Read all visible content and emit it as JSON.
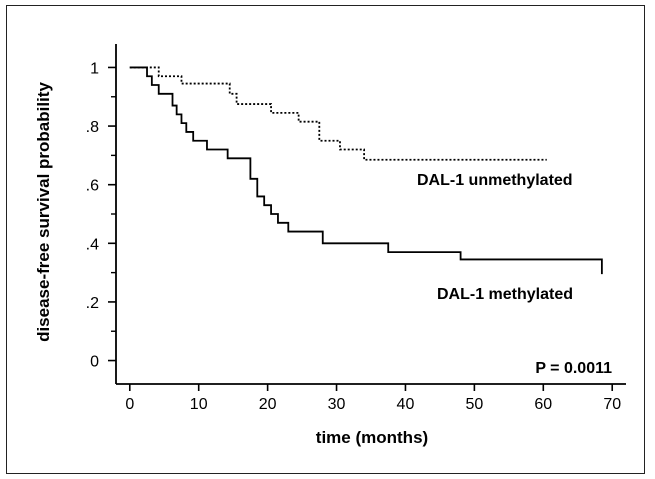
{
  "chart_data": {
    "type": "line",
    "title": "",
    "xlabel": "time (months)",
    "ylabel": "disease-free survival probability",
    "xlim": [
      -2,
      72
    ],
    "ylim": [
      -0.08,
      1.08
    ],
    "x_ticks": [
      0,
      10,
      20,
      30,
      40,
      50,
      60,
      70
    ],
    "x_tick_labels": [
      "0",
      "10",
      "20",
      "30",
      "40",
      "50",
      "60",
      "70"
    ],
    "y_ticks": [
      0,
      0.2,
      0.4,
      0.6,
      0.8,
      1.0
    ],
    "y_tick_labels": [
      "0",
      ".2",
      ".4",
      ".6",
      ".8",
      "1"
    ],
    "grid": false,
    "series": [
      {
        "name": "DAL-1 unmethylated",
        "line_style": "dotted",
        "color": "#000000",
        "step": true,
        "x": [
          0,
          3.5,
          4.2,
          7.5,
          14.5,
          15.5,
          20.5,
          24.5,
          27.5,
          30.5,
          34,
          60.5
        ],
        "y": [
          1.0,
          1.0,
          0.97,
          0.945,
          0.91,
          0.875,
          0.845,
          0.815,
          0.75,
          0.72,
          0.685,
          0.685
        ]
      },
      {
        "name": "DAL-1 methylated",
        "line_style": "solid",
        "color": "#000000",
        "step": true,
        "x": [
          0,
          2.5,
          3.2,
          4.2,
          6.2,
          6.8,
          7.5,
          8.2,
          9.2,
          11.2,
          14.2,
          17.5,
          18.5,
          19.5,
          20.5,
          21.5,
          23,
          28,
          37.5,
          48,
          68.5
        ],
        "y": [
          1.0,
          0.97,
          0.94,
          0.91,
          0.87,
          0.84,
          0.81,
          0.78,
          0.75,
          0.72,
          0.69,
          0.62,
          0.56,
          0.53,
          0.5,
          0.47,
          0.44,
          0.4,
          0.37,
          0.345,
          0.295
        ]
      }
    ],
    "annotations": [
      {
        "text": "DAL-1 unmethylated"
      },
      {
        "text": "DAL-1 methylated"
      },
      {
        "text": "P = 0.0011"
      }
    ]
  }
}
